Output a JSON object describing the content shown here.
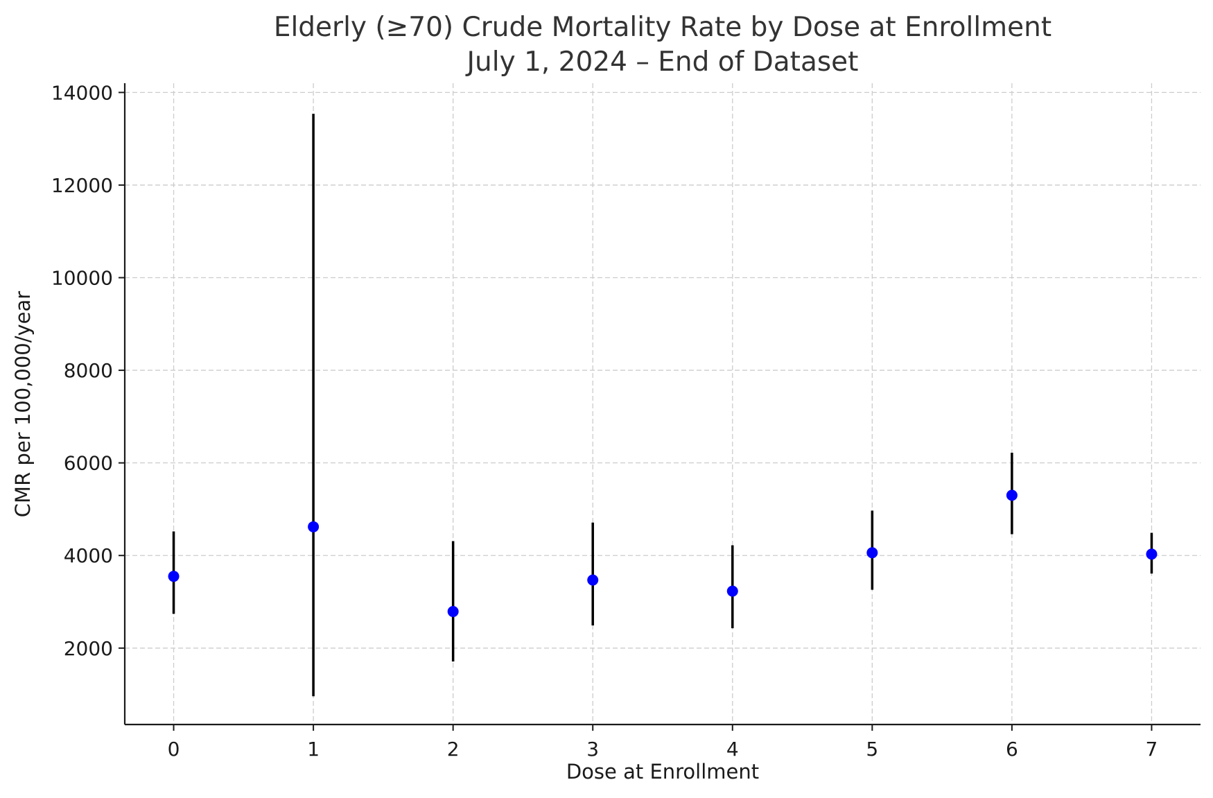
{
  "chart_data": {
    "type": "scatter",
    "title": "Elderly (≥70) Crude Mortality Rate by Dose at Enrollment",
    "subtitle": "July 1, 2024 – End of Dataset",
    "xlabel": "Dose at Enrollment",
    "ylabel": "CMR per 100,000/year",
    "x_ticks": [
      "0",
      "1",
      "2",
      "3",
      "4",
      "5",
      "6",
      "7"
    ],
    "y_ticks": [
      "2000",
      "4000",
      "6000",
      "8000",
      "10000",
      "12000",
      "14000"
    ],
    "xlim": [
      -0.35,
      7.35
    ],
    "ylim": [
      350,
      14200
    ],
    "grid": true,
    "marker_color": "#0000ff",
    "errorbar_color": "#000000",
    "points": [
      {
        "x": 0,
        "y": 3550,
        "lower": 2740,
        "upper": 4520
      },
      {
        "x": 1,
        "y": 4620,
        "lower": 960,
        "upper": 13540
      },
      {
        "x": 2,
        "y": 2790,
        "lower": 1710,
        "upper": 4310
      },
      {
        "x": 3,
        "y": 3470,
        "lower": 2490,
        "upper": 4710
      },
      {
        "x": 4,
        "y": 3230,
        "lower": 2430,
        "upper": 4220
      },
      {
        "x": 5,
        "y": 4060,
        "lower": 3260,
        "upper": 4970
      },
      {
        "x": 6,
        "y": 5300,
        "lower": 4460,
        "upper": 6220
      },
      {
        "x": 7,
        "y": 4030,
        "lower": 3610,
        "upper": 4490
      }
    ]
  }
}
